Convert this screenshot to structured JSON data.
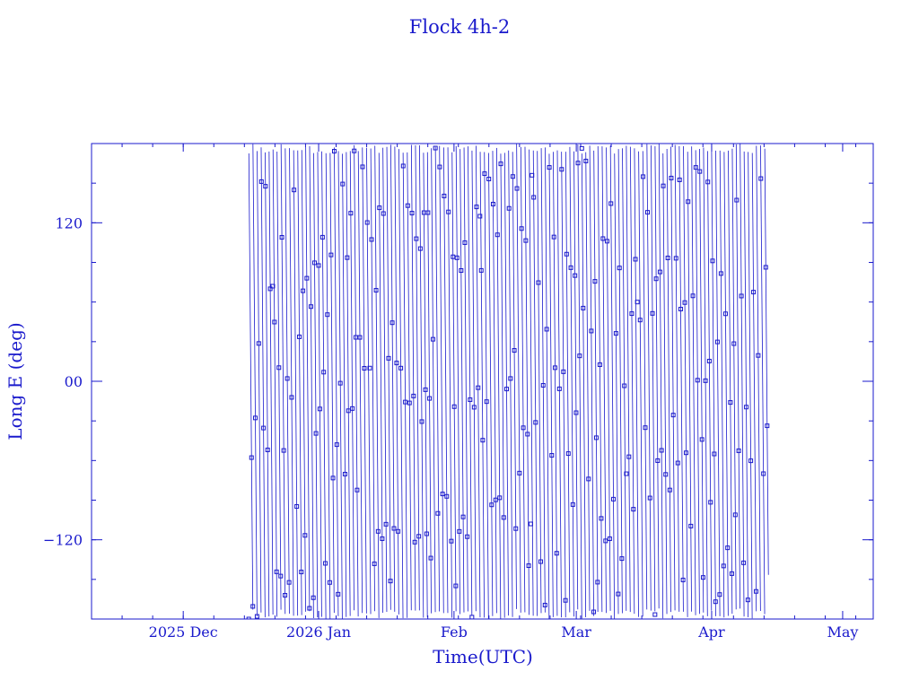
{
  "chart_data": {
    "type": "line",
    "title": "Flock 4h-2",
    "xlabel": "Time(UTC)",
    "ylabel": "Long E (deg)",
    "xlim": [
      "2025-11-10",
      "2026-05-08"
    ],
    "ylim": [
      -180,
      180
    ],
    "x_ticks": [
      {
        "date": "2025-12-01",
        "label": "2025 Dec"
      },
      {
        "date": "2026-01-01",
        "label": "2026 Jan"
      },
      {
        "date": "2026-02-01",
        "label": "Feb"
      },
      {
        "date": "2026-03-01",
        "label": "Mar"
      },
      {
        "date": "2026-04-01",
        "label": "Apr"
      },
      {
        "date": "2026-05-01",
        "label": "May"
      }
    ],
    "y_ticks": [
      {
        "value": 120,
        "label": "120"
      },
      {
        "value": 0,
        "label": "00"
      },
      {
        "value": -120,
        "label": "−120"
      }
    ],
    "marker": "square",
    "colors": {
      "series": "#1a1acc",
      "axes": "#1a1acc",
      "text": "#1a1acc"
    },
    "grid": false,
    "series": [
      {
        "x_start": "2025-12-16T00:00",
        "x_end": "2026-04-14T00:00",
        "wrap_period_days": 0.93,
        "values": [
          72,
          10,
          -100,
          125,
          146,
          -108,
          156,
          -70,
          60,
          -40,
          150,
          20,
          -90,
          178,
          120,
          35,
          -60,
          175,
          100,
          -15,
          -150,
          90,
          64,
          -75,
          130,
          40,
          -110,
          155,
          84,
          -30
        ]
      }
    ]
  }
}
